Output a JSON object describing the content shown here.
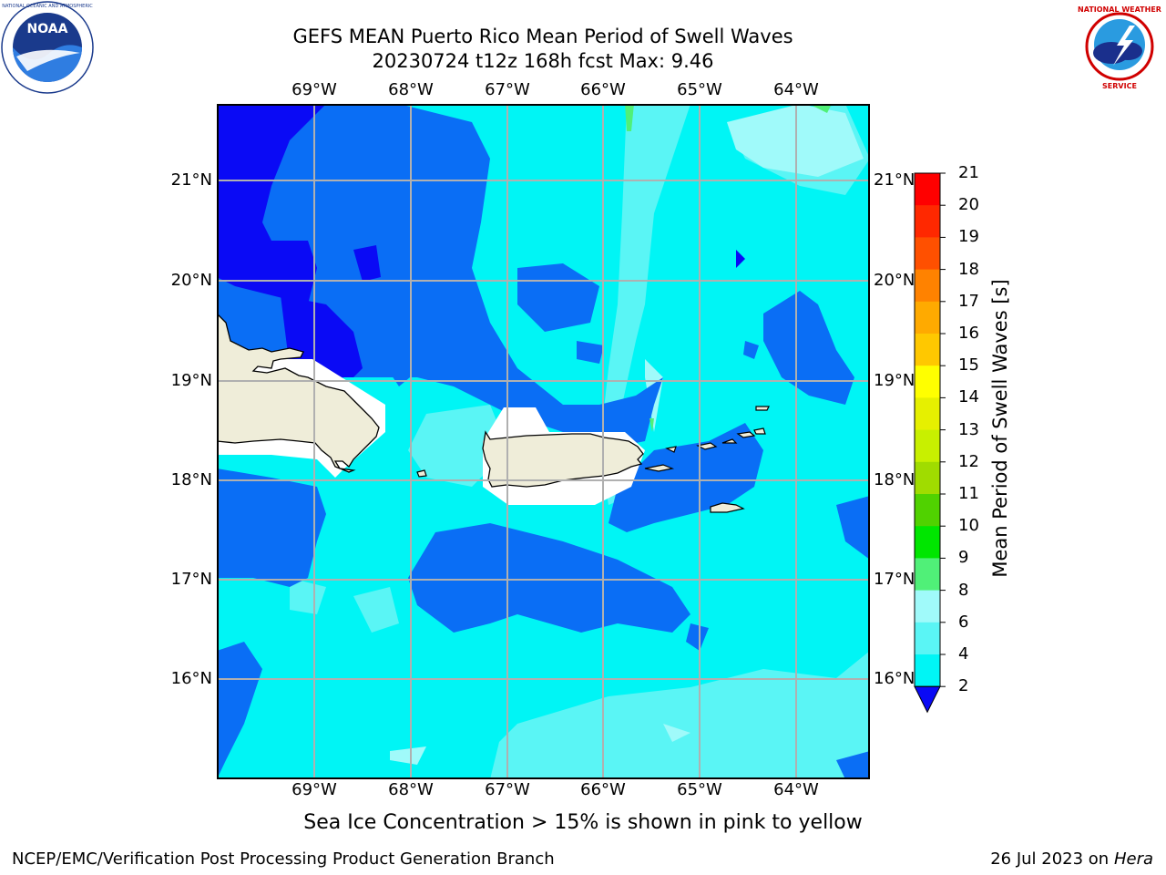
{
  "title": {
    "line1": "GEFS MEAN Puerto Rico Mean Period of Swell Waves",
    "line2": "20230724 t12z 168h fcst   Max: 9.46"
  },
  "logos": {
    "left": {
      "icon": "noaa-logo",
      "text": "NOAA",
      "ring_text": "NATIONAL OCEANIC AND ATMOSPHERIC ADMINISTRATION · U.S. DEPARTMENT OF COMMERCE"
    },
    "right": {
      "icon": "nws-logo",
      "ring_text": "NATIONAL WEATHER SERVICE"
    }
  },
  "map": {
    "lon_labels": [
      "69°W",
      "68°W",
      "67°W",
      "66°W",
      "65°W",
      "64°W"
    ],
    "lat_labels": [
      "21°N",
      "20°N",
      "19°N",
      "18°N",
      "17°N",
      "16°N"
    ],
    "land_color": "#efedd9",
    "grid_color": "#b0b0b0"
  },
  "colorbar": {
    "label": "Mean Period of Swell Waves [s]",
    "ticks": [
      "2",
      "4",
      "6",
      "8",
      "9",
      "10",
      "11",
      "12",
      "13",
      "14",
      "15",
      "16",
      "17",
      "18",
      "19",
      "20",
      "21"
    ],
    "colors": [
      "#0a0af5",
      "#0a6ef5",
      "#00f5f5",
      "#5af5f5",
      "#a0fafa",
      "#50f078",
      "#00e600",
      "#50d200",
      "#a0dc00",
      "#c8f000",
      "#e6f000",
      "#ffff00",
      "#ffc800",
      "#ffaa00",
      "#ff8200",
      "#ff5000",
      "#ff2800",
      "#ff0000"
    ],
    "extend": "min"
  },
  "note": "Sea Ice Concentration > 15% is shown in pink to yellow",
  "footer": {
    "left": "NCEP/EMC/Verification Post Processing Product Generation Branch",
    "right_prefix": "26 Jul 2023 on ",
    "right_host": "Hera"
  }
}
